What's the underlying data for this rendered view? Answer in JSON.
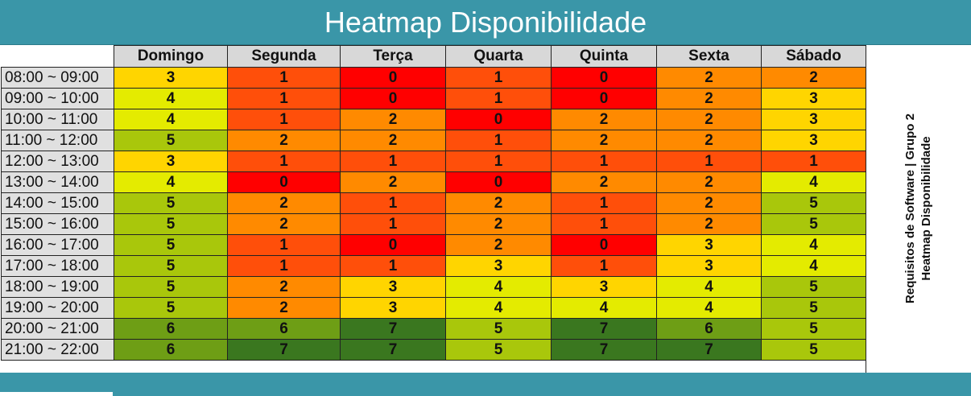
{
  "title": "Heatmap Disponibilidade",
  "side_note": {
    "line1": "Requisitos de Software | Grupo 2",
    "line2": "Heatmap Disponibilidade"
  },
  "colors": {
    "0": "#ff0000",
    "1": "#ff4f0a",
    "2": "#ff8a00",
    "3": "#ffd500",
    "4": "#e4eb00",
    "5": "#a9c70b",
    "6": "#6e9e15",
    "7": "#3a771f"
  },
  "chart_data": {
    "type": "heatmap",
    "title": "Heatmap Disponibilidade",
    "columns": [
      "Domingo",
      "Segunda",
      "Terça",
      "Quarta",
      "Quinta",
      "Sexta",
      "Sábado"
    ],
    "rows": [
      "08:00 ~ 09:00",
      "09:00 ~ 10:00",
      "10:00 ~ 11:00",
      "11:00 ~ 12:00",
      "12:00 ~ 13:00",
      "13:00 ~ 14:00",
      "14:00 ~ 15:00",
      "15:00 ~ 16:00",
      "16:00 ~ 17:00",
      "17:00 ~ 18:00",
      "18:00 ~ 19:00",
      "19:00 ~ 20:00",
      "20:00 ~ 21:00",
      "21:00 ~ 22:00"
    ],
    "values": [
      [
        3,
        1,
        0,
        1,
        0,
        2,
        2
      ],
      [
        4,
        1,
        0,
        1,
        0,
        2,
        3
      ],
      [
        4,
        1,
        2,
        0,
        2,
        2,
        3
      ],
      [
        5,
        2,
        2,
        1,
        2,
        2,
        3
      ],
      [
        3,
        1,
        1,
        1,
        1,
        1,
        1
      ],
      [
        4,
        0,
        2,
        0,
        2,
        2,
        4
      ],
      [
        5,
        2,
        1,
        2,
        1,
        2,
        5
      ],
      [
        5,
        2,
        1,
        2,
        1,
        2,
        5
      ],
      [
        5,
        1,
        0,
        2,
        0,
        3,
        4
      ],
      [
        5,
        1,
        1,
        3,
        1,
        3,
        4
      ],
      [
        5,
        2,
        3,
        4,
        3,
        4,
        5
      ],
      [
        5,
        2,
        3,
        4,
        4,
        4,
        5
      ],
      [
        6,
        6,
        7,
        5,
        7,
        6,
        5
      ],
      [
        6,
        7,
        7,
        5,
        7,
        7,
        5
      ]
    ]
  }
}
